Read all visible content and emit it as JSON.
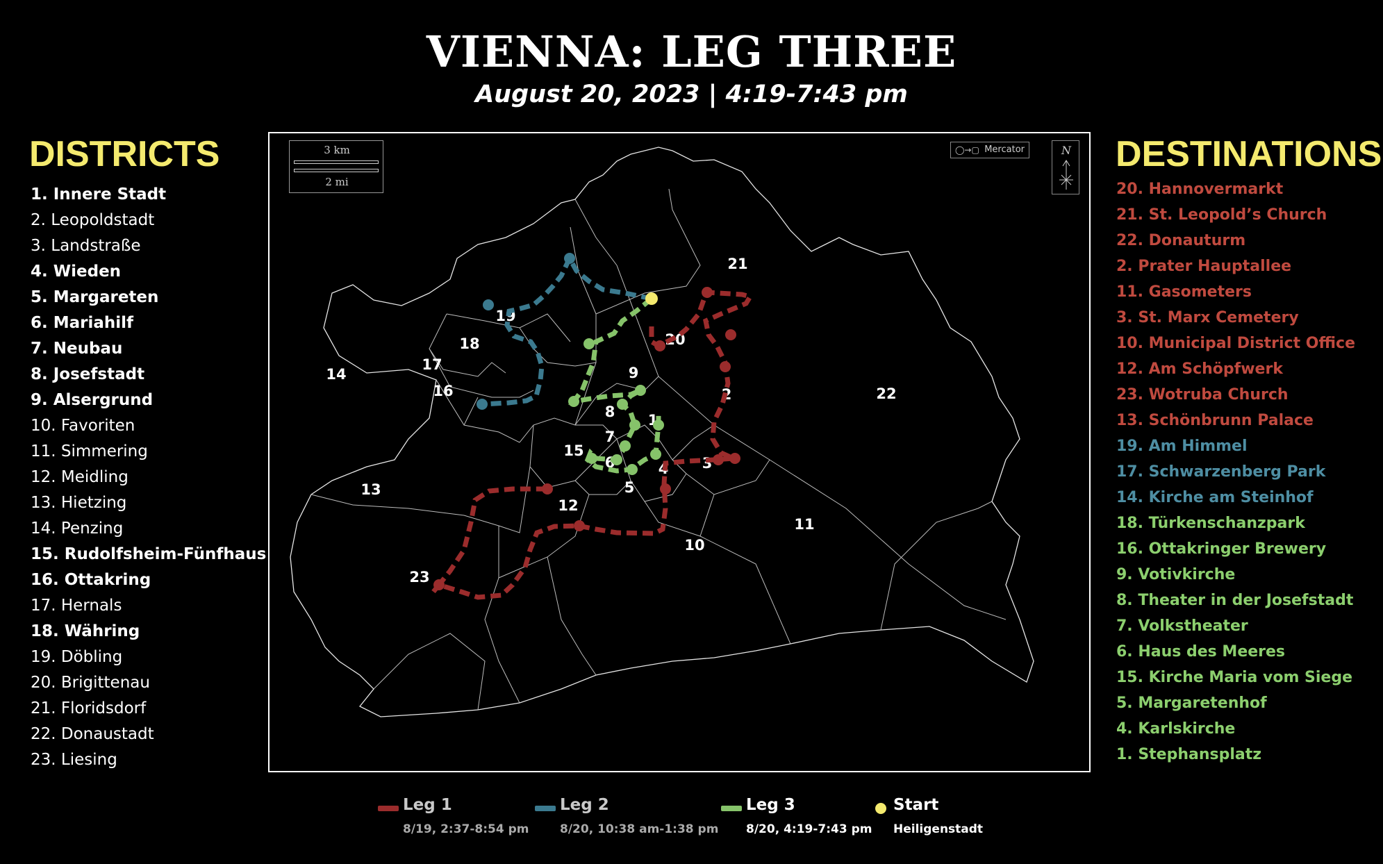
{
  "title": "VIENNA: LEG THREE",
  "subtitle": "August 20, 2023 | 4:19-7:43 pm",
  "colors": {
    "heading": "#f4ea6e",
    "leg1": "#9b2c2c",
    "leg2": "#3b7a8f",
    "leg3": "#86c36a",
    "start": "#f4ea6e",
    "dest_leg1": "#c04a3f",
    "dest_leg2": "#4e8ea3",
    "dest_leg3": "#8ccf6e"
  },
  "districts": {
    "heading": "DISTRICTS",
    "items": [
      {
        "label": "1. Innere Stadt",
        "bold": true
      },
      {
        "label": "2. Leopoldstadt",
        "bold": false
      },
      {
        "label": "3. Landstraße",
        "bold": false
      },
      {
        "label": "4. Wieden",
        "bold": true
      },
      {
        "label": "5. Margareten",
        "bold": true
      },
      {
        "label": "6. Mariahilf",
        "bold": true
      },
      {
        "label": "7. Neubau",
        "bold": true
      },
      {
        "label": "8. Josefstadt",
        "bold": true
      },
      {
        "label": "9. Alsergrund",
        "bold": true
      },
      {
        "label": "10. Favoriten",
        "bold": false
      },
      {
        "label": "11. Simmering",
        "bold": false
      },
      {
        "label": "12. Meidling",
        "bold": false
      },
      {
        "label": "13. Hietzing",
        "bold": false
      },
      {
        "label": "14. Penzing",
        "bold": false
      },
      {
        "label": "15. Rudolfsheim-Fünfhaus",
        "bold": true
      },
      {
        "label": "16. Ottakring",
        "bold": true
      },
      {
        "label": "17. Hernals",
        "bold": false
      },
      {
        "label": "18. Währing",
        "bold": true
      },
      {
        "label": "19. Döbling",
        "bold": false
      },
      {
        "label": "20. Brigittenau",
        "bold": false
      },
      {
        "label": "21. Floridsdorf",
        "bold": false
      },
      {
        "label": "22. Donaustadt",
        "bold": false
      },
      {
        "label": "23. Liesing",
        "bold": false
      }
    ]
  },
  "destinations": {
    "heading": "DESTINATIONS",
    "items": [
      {
        "label": "20. Hannovermarkt",
        "leg": 1
      },
      {
        "label": "21. St. Leopold’s Church",
        "leg": 1
      },
      {
        "label": "22. Donauturm",
        "leg": 1
      },
      {
        "label": "2. Prater Hauptallee",
        "leg": 1
      },
      {
        "label": "11. Gasometers",
        "leg": 1
      },
      {
        "label": "3. St. Marx Cemetery",
        "leg": 1
      },
      {
        "label": "10. Municipal District Office",
        "leg": 1
      },
      {
        "label": "12. Am Schöpfwerk",
        "leg": 1
      },
      {
        "label": "23. Wotruba Church",
        "leg": 1
      },
      {
        "label": "13. Schönbrunn Palace",
        "leg": 1
      },
      {
        "label": "19. Am Himmel",
        "leg": 2
      },
      {
        "label": "17. Schwarzenberg Park",
        "leg": 2
      },
      {
        "label": "14. Kirche am Steinhof",
        "leg": 2
      },
      {
        "label": "18. Türkenschanzpark",
        "leg": 3
      },
      {
        "label": "16. Ottakringer Brewery",
        "leg": 3
      },
      {
        "label": "9. Votivkirche",
        "leg": 3
      },
      {
        "label": "8. Theater in der Josefstadt",
        "leg": 3
      },
      {
        "label": "7. Volkstheater",
        "leg": 3
      },
      {
        "label": "6. Haus des Meeres",
        "leg": 3
      },
      {
        "label": "15. Kirche Maria vom Siege",
        "leg": 3
      },
      {
        "label": "5. Margaretenhof",
        "leg": 3
      },
      {
        "label": "4. Karlskirche",
        "leg": 3
      },
      {
        "label": "1. Stephansplatz",
        "leg": 3
      }
    ]
  },
  "map": {
    "scale_km": "3 km",
    "scale_mi": "2 mi",
    "projection": "Mercator",
    "north": "N",
    "district_labels": [
      "1",
      "2",
      "3",
      "4",
      "5",
      "6",
      "7",
      "8",
      "9",
      "10",
      "11",
      "12",
      "13",
      "14",
      "15",
      "16",
      "17",
      "18",
      "19",
      "20",
      "21",
      "22",
      "23"
    ]
  },
  "legend": {
    "leg1": {
      "label": "Leg 1",
      "sub": "8/19, 2:37-8:54 pm"
    },
    "leg2": {
      "label": "Leg 2",
      "sub": "8/20, 10:38 am-1:38 pm"
    },
    "leg3": {
      "label": "Leg 3",
      "sub": "8/20, 4:19-7:43 pm"
    },
    "start": {
      "label": "Start",
      "sub": "Heiligenstadt"
    }
  }
}
